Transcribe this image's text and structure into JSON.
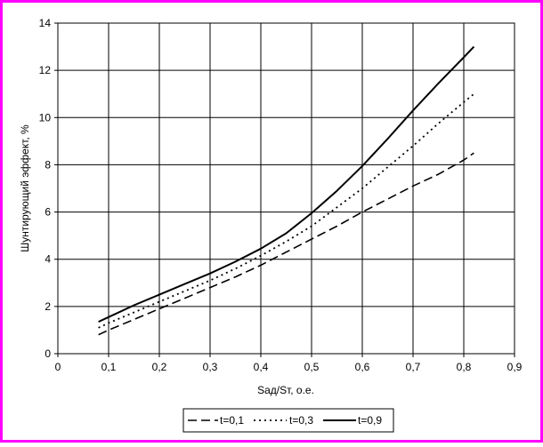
{
  "chart_data": {
    "type": "line",
    "title": "",
    "xlabel": "Sад/Sт, о.е.",
    "ylabel": "Шунтирующий эффект, %",
    "xlim": [
      0,
      0.9
    ],
    "ylim": [
      0,
      14
    ],
    "x_ticks": [
      0,
      0.1,
      0.2,
      0.3,
      0.4,
      0.5,
      0.6,
      0.7,
      0.8,
      0.9
    ],
    "y_ticks": [
      0,
      2,
      4,
      6,
      8,
      10,
      12,
      14
    ],
    "x_tick_labels": [
      "0",
      "0,1",
      "0,2",
      "0,3",
      "0,4",
      "0,5",
      "0,6",
      "0,7",
      "0,8",
      "0,9"
    ],
    "y_tick_labels": [
      "0",
      "2",
      "4",
      "6",
      "8",
      "10",
      "12",
      "14"
    ],
    "grid": true,
    "legend_position": "bottom-center",
    "series": [
      {
        "name": "t=0,1",
        "style": "long-dash",
        "x": [
          0.08,
          0.1,
          0.15,
          0.2,
          0.25,
          0.3,
          0.35,
          0.4,
          0.45,
          0.5,
          0.55,
          0.6,
          0.65,
          0.7,
          0.75,
          0.8,
          0.82
        ],
        "y": [
          0.8,
          1.0,
          1.45,
          1.9,
          2.35,
          2.8,
          3.25,
          3.75,
          4.3,
          4.85,
          5.4,
          6.0,
          6.55,
          7.1,
          7.6,
          8.2,
          8.5
        ]
      },
      {
        "name": "t=0,3",
        "style": "short-dash",
        "x": [
          0.08,
          0.1,
          0.15,
          0.2,
          0.25,
          0.3,
          0.35,
          0.4,
          0.45,
          0.5,
          0.55,
          0.6,
          0.65,
          0.7,
          0.75,
          0.8,
          0.82
        ],
        "y": [
          1.1,
          1.3,
          1.75,
          2.2,
          2.65,
          3.1,
          3.6,
          4.15,
          4.75,
          5.4,
          6.2,
          7.0,
          7.9,
          8.8,
          9.75,
          10.65,
          11.0
        ]
      },
      {
        "name": "t=0,9",
        "style": "solid",
        "x": [
          0.08,
          0.1,
          0.15,
          0.2,
          0.25,
          0.3,
          0.35,
          0.4,
          0.45,
          0.5,
          0.55,
          0.6,
          0.65,
          0.7,
          0.75,
          0.8,
          0.82
        ],
        "y": [
          1.35,
          1.55,
          2.05,
          2.5,
          2.95,
          3.4,
          3.9,
          4.45,
          5.1,
          5.95,
          6.9,
          7.95,
          9.1,
          10.3,
          11.45,
          12.55,
          13.0
        ]
      }
    ]
  },
  "colors": {
    "frame": "#ff00ff",
    "plot_background": "#ffffff",
    "line": "#000000",
    "grid": "#000000"
  }
}
